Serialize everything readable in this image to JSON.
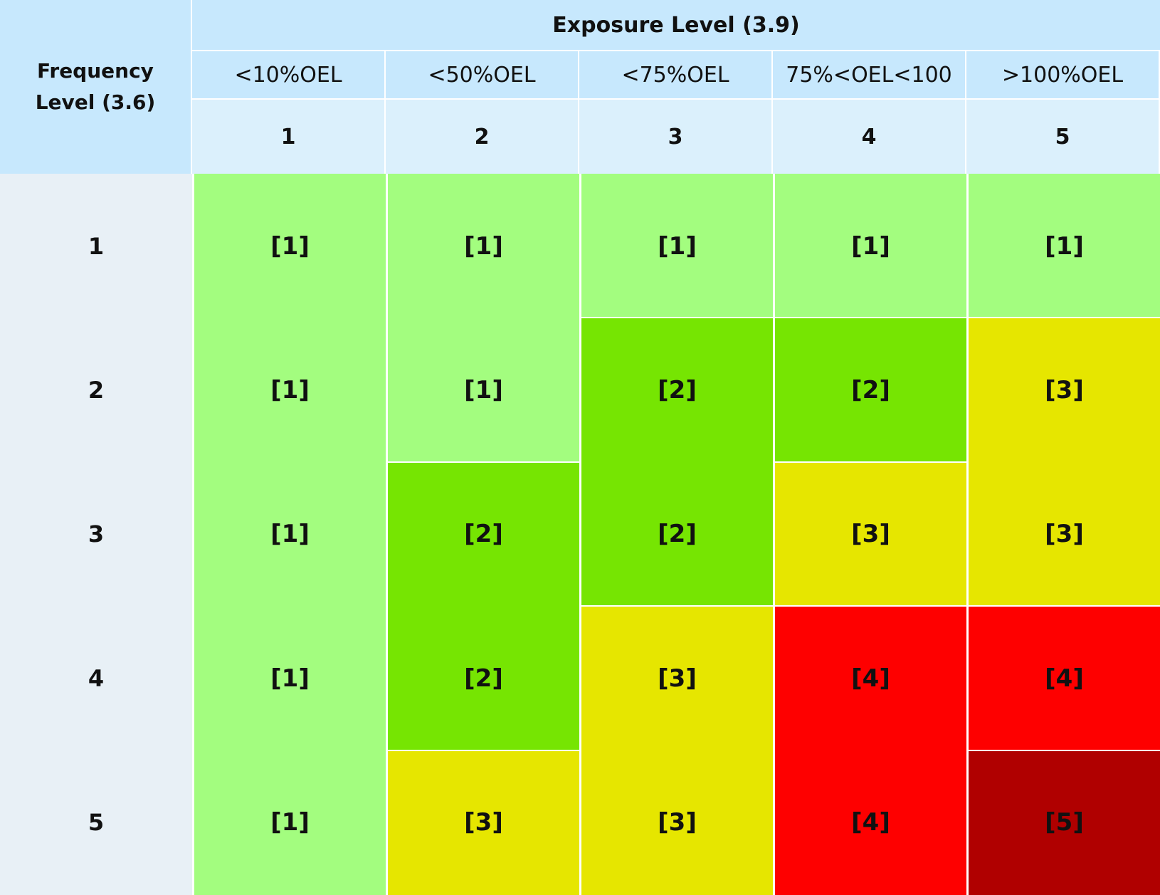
{
  "chart_data": {
    "type": "heatmap",
    "corner_label": [
      "Frequency",
      "Level (3.6)"
    ],
    "column_group_title": "Exposure Level (3.9)",
    "column_bins": [
      "<10%OEL",
      "<50%OEL",
      "<75%OEL",
      "75%<OEL<100",
      ">100%OEL"
    ],
    "columns": [
      "1",
      "2",
      "3",
      "4",
      "5"
    ],
    "rows": [
      "1",
      "2",
      "3",
      "4",
      "5"
    ],
    "values": [
      [
        1,
        1,
        1,
        1,
        1
      ],
      [
        1,
        1,
        2,
        2,
        3
      ],
      [
        1,
        2,
        2,
        3,
        3
      ],
      [
        1,
        2,
        3,
        4,
        4
      ],
      [
        1,
        3,
        3,
        4,
        5
      ]
    ],
    "value_format": "[{v}]",
    "level_colors": {
      "1": "#a3fd7f",
      "2": "#76e502",
      "3": "#e6e600",
      "4": "#fe0000",
      "5": "#b00000"
    },
    "header_colors": {
      "title": "#c7e8fd",
      "bins": "#c7e8fd",
      "numbers": "#dbf0fc",
      "row_labels": "#e8f0f6"
    }
  }
}
